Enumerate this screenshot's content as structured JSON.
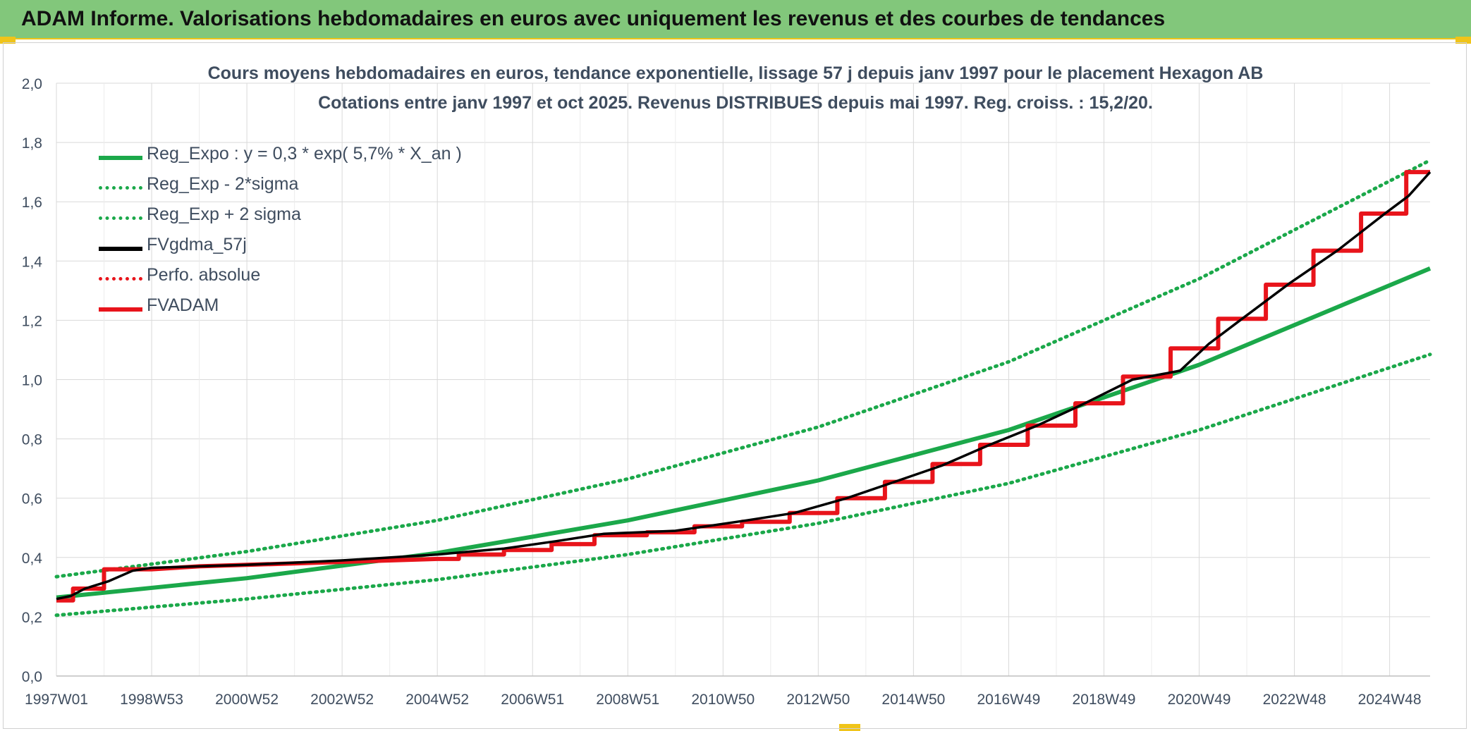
{
  "header": {
    "title": "ADAM Informe. Valorisations hebdomadaires en euros avec uniquement les revenus et des courbes de tendances"
  },
  "colors": {
    "banner": "#82c77b",
    "accent": "#f0c419",
    "green": "#1ba84a",
    "red": "#e8141b",
    "black": "#000000",
    "grid": "#d9d9d9",
    "text": "#3f4d5f"
  },
  "chart_data": {
    "type": "line",
    "title": "Cours moyens hebdomadaires en euros, tendance exponentielle, lissage 57 j depuis janv 1997 pour le placement Hexagon AB",
    "subtitle": "Cotations entre janv 1997 et oct 2025. Revenus DISTRIBUES depuis mai 1997. Reg. croiss. : 15,2/20.",
    "xlabel": "",
    "ylabel": "",
    "ylim": [
      0,
      2
    ],
    "xlim": [
      1997.0,
      2025.85
    ],
    "y_ticks": [
      "0,0",
      "0,2",
      "0,4",
      "0,6",
      "0,8",
      "1,0",
      "1,2",
      "1,4",
      "1,6",
      "1,8",
      "2,0"
    ],
    "x_ticks": [
      {
        "label": "1997W01",
        "x": 1997.0
      },
      {
        "label": "1998W53",
        "x": 1999.0
      },
      {
        "label": "2000W52",
        "x": 2001.0
      },
      {
        "label": "2002W52",
        "x": 2003.0
      },
      {
        "label": "2004W52",
        "x": 2005.0
      },
      {
        "label": "2006W51",
        "x": 2007.0
      },
      {
        "label": "2008W51",
        "x": 2009.0
      },
      {
        "label": "2010W50",
        "x": 2011.0
      },
      {
        "label": "2012W50",
        "x": 2013.0
      },
      {
        "label": "2014W50",
        "x": 2015.0
      },
      {
        "label": "2016W49",
        "x": 2017.0
      },
      {
        "label": "2018W49",
        "x": 2019.0
      },
      {
        "label": "2020W49",
        "x": 2021.0
      },
      {
        "label": "2022W48",
        "x": 2023.0
      },
      {
        "label": "2024W48",
        "x": 2025.0
      }
    ],
    "grid": true,
    "legend_position": "top-left",
    "series": [
      {
        "name": "Reg_Expo : y = 0,3 * exp( 5,7% *  X_an )",
        "style": "solid",
        "color": "#1ba84a",
        "x": [
          1997.0,
          2001.0,
          2005.0,
          2009.0,
          2013.0,
          2017.0,
          2021.0,
          2025.85
        ],
        "y": [
          0.265,
          0.33,
          0.415,
          0.525,
          0.66,
          0.83,
          1.05,
          1.375
        ]
      },
      {
        "name": "Reg_Exp - 2*sigma",
        "style": "dotted",
        "color": "#1ba84a",
        "x": [
          1997.0,
          2001.0,
          2005.0,
          2009.0,
          2013.0,
          2017.0,
          2021.0,
          2025.85
        ],
        "y": [
          0.205,
          0.26,
          0.325,
          0.41,
          0.515,
          0.65,
          0.83,
          1.085
        ]
      },
      {
        "name": "Reg_Exp + 2 sigma",
        "style": "dotted",
        "color": "#1ba84a",
        "x": [
          1997.0,
          2001.0,
          2005.0,
          2009.0,
          2013.0,
          2017.0,
          2021.0,
          2025.85
        ],
        "y": [
          0.335,
          0.42,
          0.525,
          0.665,
          0.84,
          1.06,
          1.34,
          1.74
        ]
      },
      {
        "name": "FVgdma_57j",
        "style": "solid",
        "color": "#000000",
        "x": [
          1997.0,
          1997.3,
          1997.6,
          1998.1,
          1998.6,
          1999.0,
          2001.0,
          2003.0,
          2005.0,
          2006.4,
          2007.5,
          2008.5,
          2010.0,
          2011.5,
          2012.5,
          2013.6,
          2014.6,
          2015.6,
          2016.6,
          2017.6,
          2018.6,
          2019.6,
          2020.6,
          2021.2,
          2021.9,
          2022.9,
          2023.9,
          2024.9,
          2025.4,
          2025.85
        ],
        "y": [
          0.26,
          0.27,
          0.295,
          0.32,
          0.355,
          0.365,
          0.375,
          0.39,
          0.41,
          0.43,
          0.455,
          0.48,
          0.49,
          0.525,
          0.55,
          0.6,
          0.655,
          0.71,
          0.78,
          0.845,
          0.92,
          1.0,
          1.03,
          1.12,
          1.205,
          1.325,
          1.435,
          1.56,
          1.62,
          1.7
        ]
      },
      {
        "name": "Perfo. absolue",
        "style": "dotted",
        "color": "#e8141b",
        "x": [],
        "y": []
      },
      {
        "name": "FVADAM",
        "style": "solid",
        "color": "#e8141b",
        "x": [
          1997.0,
          1997.35,
          1997.35,
          1998.0,
          1998.0,
          1999.0,
          2000.0,
          2001.0,
          2002.0,
          2003.0,
          2004.0,
          2005.0,
          2005.45,
          2005.45,
          2006.4,
          2006.4,
          2007.4,
          2007.4,
          2008.3,
          2008.3,
          2009.4,
          2009.4,
          2010.4,
          2010.4,
          2011.4,
          2011.4,
          2012.4,
          2012.4,
          2013.4,
          2013.4,
          2014.4,
          2014.4,
          2015.4,
          2015.4,
          2016.4,
          2016.4,
          2017.4,
          2017.4,
          2018.4,
          2018.4,
          2019.4,
          2019.4,
          2020.4,
          2020.4,
          2021.4,
          2021.4,
          2022.4,
          2022.4,
          2023.4,
          2023.4,
          2024.4,
          2024.4,
          2025.35,
          2025.35,
          2025.85
        ],
        "y": [
          0.255,
          0.255,
          0.295,
          0.295,
          0.36,
          0.36,
          0.37,
          0.375,
          0.38,
          0.385,
          0.39,
          0.395,
          0.395,
          0.41,
          0.41,
          0.425,
          0.425,
          0.445,
          0.445,
          0.475,
          0.475,
          0.485,
          0.485,
          0.505,
          0.505,
          0.52,
          0.52,
          0.55,
          0.55,
          0.6,
          0.6,
          0.655,
          0.655,
          0.715,
          0.715,
          0.78,
          0.78,
          0.845,
          0.845,
          0.92,
          0.92,
          1.01,
          1.01,
          1.105,
          1.105,
          1.205,
          1.205,
          1.32,
          1.32,
          1.435,
          1.435,
          1.56,
          1.56,
          1.7,
          1.7
        ]
      }
    ]
  }
}
